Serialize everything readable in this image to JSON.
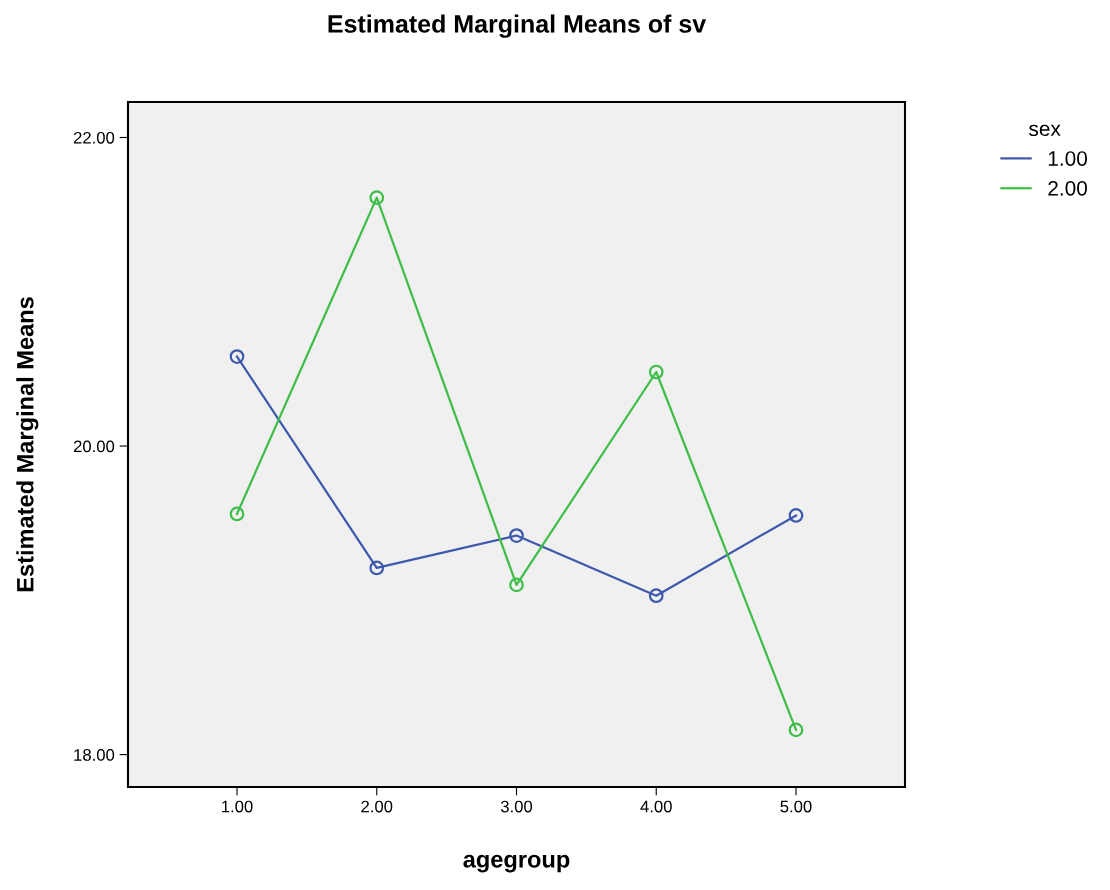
{
  "chart_data": {
    "type": "line",
    "title": "Estimated Marginal Means of sv",
    "xlabel": "agegroup",
    "ylabel": "Estimated Marginal Means",
    "legend_title": "sex",
    "categories": [
      "1.00",
      "2.00",
      "3.00",
      "4.00",
      "5.00"
    ],
    "series": [
      {
        "name": "1.00",
        "color": "#3e58ac",
        "values": [
          20.58,
          19.21,
          19.42,
          19.03,
          19.55
        ]
      },
      {
        "name": "2.00",
        "color": "#3ebd48",
        "values": [
          19.56,
          21.61,
          19.1,
          20.48,
          18.16
        ]
      }
    ],
    "ylim": [
      17.79,
      22.23
    ],
    "yticks": [
      {
        "value": 18,
        "label": "18.00"
      },
      {
        "value": 20,
        "label": "20.00"
      },
      {
        "value": 22,
        "label": "22.00"
      }
    ],
    "grid": false,
    "legend": "right",
    "marker": "circle",
    "line_style": "solid"
  }
}
